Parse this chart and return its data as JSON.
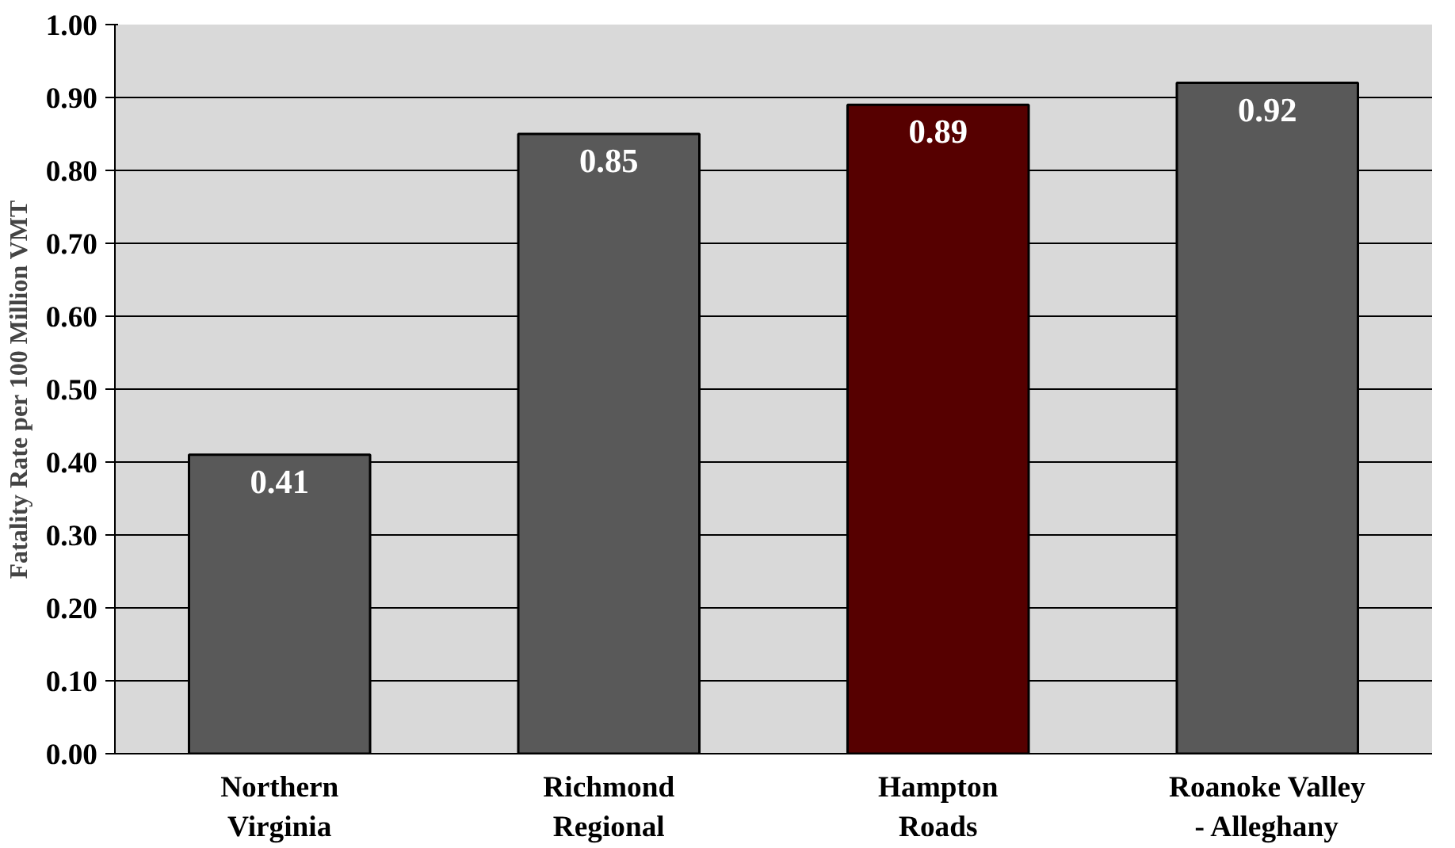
{
  "chart_data": {
    "type": "bar",
    "ylabel": "Fatality Rate per 100 Million VMT",
    "categories": [
      "Northern\nVirginia",
      "Richmond\nRegional",
      "Hampton\nRoads",
      "Roanoke Valley\n- Alleghany"
    ],
    "values": [
      0.41,
      0.85,
      0.89,
      0.92
    ],
    "colors": [
      "#595959",
      "#595959",
      "#560000",
      "#595959"
    ],
    "ylim": [
      0,
      1
    ],
    "yticks": [
      {
        "value": 0,
        "label": "0.00"
      },
      {
        "value": 0.1,
        "label": "0.10"
      },
      {
        "value": 0.2,
        "label": "0.20"
      },
      {
        "value": 0.3,
        "label": "0.30"
      },
      {
        "value": 0.4,
        "label": "0.40"
      },
      {
        "value": 0.5,
        "label": "0.50"
      },
      {
        "value": 0.6,
        "label": "0.60"
      },
      {
        "value": 0.7,
        "label": "0.70"
      },
      {
        "value": 0.8,
        "label": "0.80"
      },
      {
        "value": 0.9,
        "label": "0.90"
      },
      {
        "value": 1,
        "label": "1.00"
      }
    ],
    "grid": "y",
    "data_labels": true
  }
}
